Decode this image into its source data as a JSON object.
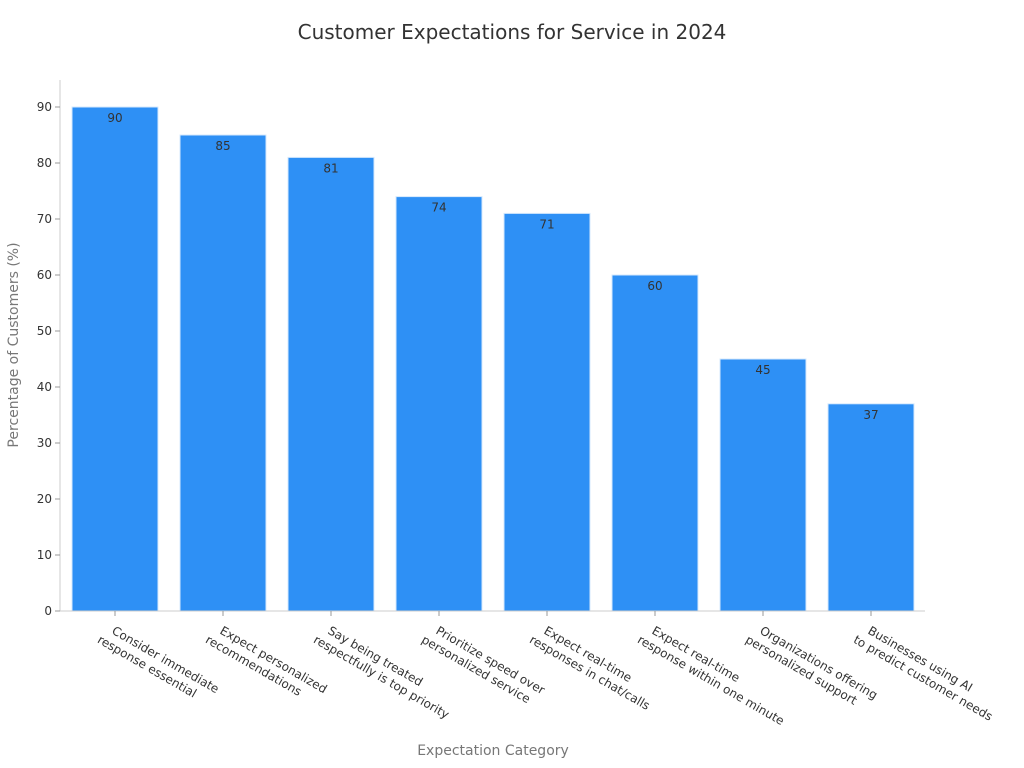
{
  "chart_data": {
    "type": "bar",
    "title": "Customer Expectations for Service in 2024",
    "xlabel": "Expectation Category",
    "ylabel": "Percentage of Customers (%)",
    "categories": [
      [
        "Consider immediate",
        "response essential"
      ],
      [
        "Expect personalized",
        "recommendations"
      ],
      [
        "Say being treated",
        "respectfully is top priority"
      ],
      [
        "Prioritize speed over",
        "personalized service"
      ],
      [
        "Expect real-time",
        "responses in chat/calls"
      ],
      [
        "Expect real-time",
        "response within one minute"
      ],
      [
        "Organizations offering",
        "personalized support"
      ],
      [
        "Businesses using AI",
        "to predict customer needs"
      ]
    ],
    "values": [
      90,
      85,
      81,
      74,
      71,
      60,
      45,
      37
    ],
    "ylim": [
      0,
      95
    ],
    "yticks": [
      0,
      10,
      20,
      30,
      40,
      50,
      60,
      70,
      80,
      90
    ],
    "grid": false,
    "bar_color": "#2e90f5",
    "bar_edge_color": "#d6e9fd"
  }
}
